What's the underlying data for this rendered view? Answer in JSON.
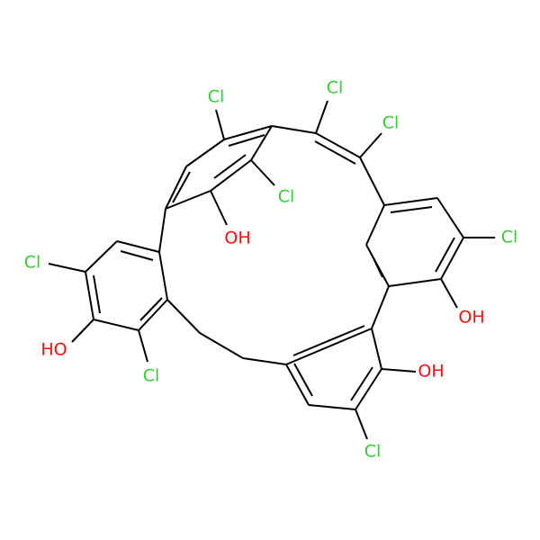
{
  "atoms": [
    "Cl",
    "Cl",
    "Cl",
    "Cl",
    "OH",
    "Cl",
    "Cl",
    "OH",
    "HO",
    "Cl",
    "OH",
    "Cl"
  ]
}
